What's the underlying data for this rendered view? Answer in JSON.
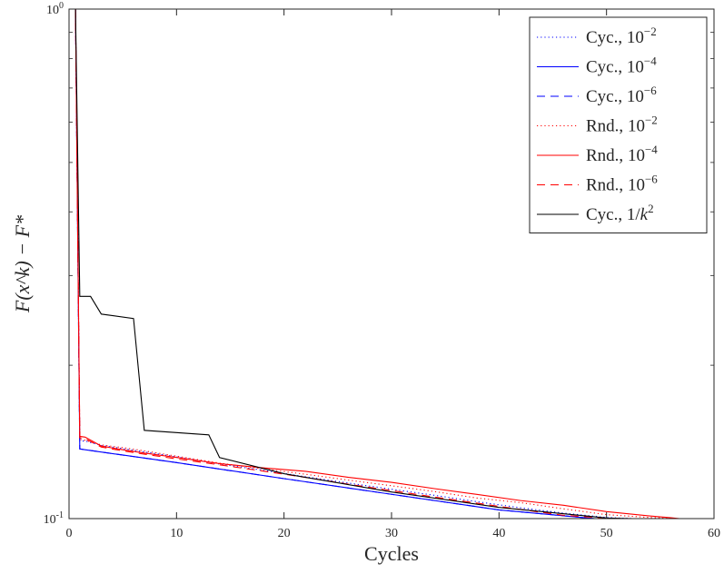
{
  "chart_data": {
    "type": "line",
    "title": "",
    "xlabel": "Cycles",
    "ylabel": "F(x^k) − F*",
    "xlim": [
      0,
      60
    ],
    "ylim": [
      0.1,
      1
    ],
    "yscale": "log",
    "grid": false,
    "legend_position": "top-right",
    "x_ticks": [
      0,
      10,
      20,
      30,
      40,
      50,
      60
    ],
    "x_tick_labels": [
      "0",
      "10",
      "20",
      "30",
      "40",
      "50",
      "60"
    ],
    "y_ticks": [
      0.1,
      1
    ],
    "y_tick_labels": [
      {
        "base": "10",
        "exp": "-1"
      },
      {
        "base": "10",
        "exp": "0"
      }
    ],
    "series": [
      {
        "name_text": "Cyc., ",
        "name_base": "10",
        "name_exp": "−2",
        "color": "#0000ff",
        "style": "dotted",
        "x": [
          0.6,
          1.0,
          1.5,
          3,
          5,
          7,
          10,
          14,
          18,
          22,
          26,
          30,
          34,
          38,
          42,
          46,
          50,
          53
        ],
        "y": [
          1.0,
          0.142,
          0.142,
          0.1392,
          0.1372,
          0.1352,
          0.1322,
          0.128,
          0.1245,
          0.1208,
          0.1174,
          0.1142,
          0.1111,
          0.1079,
          0.105,
          0.1025,
          0.1005,
          0.0999
        ]
      },
      {
        "name_text": "Cyc., ",
        "name_base": "10",
        "name_exp": "−4",
        "color": "#0000ff",
        "style": "solid",
        "x": [
          0.6,
          1.0,
          1.5,
          10,
          20,
          30,
          40,
          50,
          53
        ],
        "y": [
          1.0,
          0.137,
          0.1365,
          0.1288,
          0.1198,
          0.1116,
          0.104,
          0.0995,
          0.0995
        ]
      },
      {
        "name_text": "Cyc., ",
        "name_base": "10",
        "name_exp": "−6",
        "color": "#0000ff",
        "style": "dashed",
        "x": [
          0.6,
          1.0,
          1.5,
          10,
          20,
          30,
          40,
          50,
          53
        ],
        "y": [
          1.0,
          0.137,
          0.1365,
          0.1288,
          0.1198,
          0.1116,
          0.104,
          0.0995,
          0.0995
        ]
      },
      {
        "name_text": "Rnd., ",
        "name_base": "10",
        "name_exp": "−2",
        "color": "#ff0000",
        "style": "dotted",
        "x": [
          0.6,
          1.0,
          1.5,
          3,
          5,
          7,
          10,
          14,
          18,
          22,
          26,
          30,
          34,
          38,
          42,
          46,
          50,
          54,
          57
        ],
        "y": [
          1.0,
          0.143,
          0.1425,
          0.1395,
          0.1378,
          0.1358,
          0.1326,
          0.1285,
          0.1252,
          0.1222,
          0.119,
          0.116,
          0.113,
          0.1097,
          0.1075,
          0.1045,
          0.1018,
          0.1005,
          0.0999
        ]
      },
      {
        "name_text": "Rnd., ",
        "name_base": "10",
        "name_exp": "−4",
        "color": "#ff0000",
        "style": "solid",
        "x": [
          0.6,
          1.0,
          1.5,
          3,
          5,
          7,
          10,
          14,
          18,
          22,
          26,
          30,
          34,
          38,
          42,
          46,
          50,
          54,
          56,
          57
        ],
        "y": [
          1.0,
          0.145,
          0.1445,
          0.1388,
          0.1365,
          0.1345,
          0.1318,
          0.1282,
          0.1258,
          0.1238,
          0.1205,
          0.1178,
          0.1145,
          0.1115,
          0.1085,
          0.1062,
          0.1032,
          0.1012,
          0.1004,
          0.0999
        ]
      },
      {
        "name_text": "Rnd., ",
        "name_base": "10",
        "name_exp": "−6",
        "color": "#ff0000",
        "style": "dashed",
        "x": [
          0.6,
          1.0,
          1.5,
          3,
          5,
          7,
          10,
          14,
          18,
          22,
          26,
          30,
          34,
          38,
          42,
          46,
          50,
          53
        ],
        "y": [
          1.0,
          0.144,
          0.1435,
          0.1382,
          0.1358,
          0.1338,
          0.131,
          0.1275,
          0.124,
          0.1205,
          0.1168,
          0.1135,
          0.1102,
          0.1072,
          0.1042,
          0.1015,
          0.1002,
          0.0999
        ]
      },
      {
        "name_text": "Cyc., 1/",
        "name_base": "k",
        "name_exp": "2",
        "color": "#000000",
        "style": "solid",
        "x": [
          0.6,
          1.0,
          2.0,
          3.0,
          6.0,
          7.0,
          13.0,
          14.0,
          20,
          30,
          40,
          50,
          53
        ],
        "y": [
          1.0,
          0.273,
          0.273,
          0.252,
          0.247,
          0.149,
          0.146,
          0.1318,
          0.1225,
          0.1128,
          0.1052,
          0.1003,
          0.0999
        ]
      }
    ]
  }
}
